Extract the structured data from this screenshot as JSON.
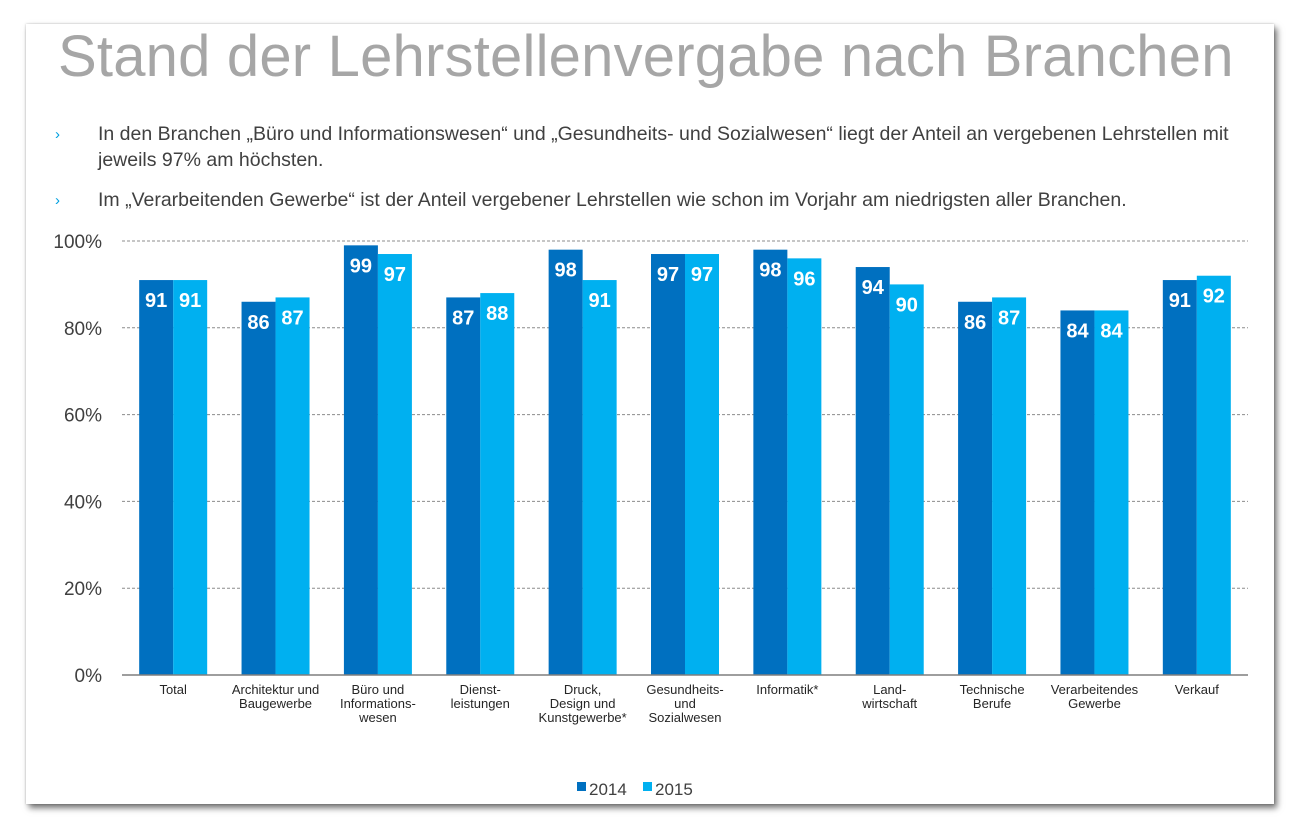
{
  "title": "Stand der Lehrstellenvergabe nach Branchen",
  "bullets": [
    {
      "marker": "›",
      "text": "In den Branchen „Büro und Informationswesen“ und „Gesundheits- und Sozialwesen“ liegt der Anteil an vergebenen Lehrstellen mit jeweils 97% am höchsten."
    },
    {
      "marker": "›",
      "text": "Im „Verarbeitenden Gewerbe“ ist der Anteil vergebener Lehrstellen wie schon im Vorjahr am niedrigsten aller Branchen."
    }
  ],
  "colors": {
    "series_2014": "#0070c0",
    "series_2015": "#00b0f0",
    "title": "#a6a6a6",
    "bullet_marker": "#00a0e0"
  },
  "chart_data": {
    "type": "bar",
    "categories": [
      [
        "Total"
      ],
      [
        "Architektur und",
        "Baugewerbe"
      ],
      [
        "Büro und",
        "Informations-",
        "wesen"
      ],
      [
        "Dienst-",
        "leistungen"
      ],
      [
        "Druck,",
        "Design und",
        "Kunstgewerbe*"
      ],
      [
        "Gesundheits-",
        "und",
        "Sozialwesen"
      ],
      [
        "Informatik*"
      ],
      [
        "Land-",
        "wirtschaft"
      ],
      [
        "Technische",
        "Berufe"
      ],
      [
        "Verarbeitendes",
        "Gewerbe"
      ],
      [
        "Verkauf"
      ]
    ],
    "series": [
      {
        "name": "2014",
        "color": "#0070c0",
        "values": [
          91,
          86,
          99,
          87,
          98,
          97,
          98,
          94,
          86,
          84,
          91
        ]
      },
      {
        "name": "2015",
        "color": "#00b0f0",
        "values": [
          91,
          87,
          97,
          88,
          91,
          97,
          96,
          90,
          87,
          84,
          92
        ]
      }
    ],
    "data_labels": [
      [
        "91",
        "86",
        "99",
        "87",
        "98",
        "97",
        "98",
        "94",
        "86",
        "84",
        "91"
      ],
      [
        "91",
        "87",
        "97",
        "88",
        "91",
        "97",
        "96",
        "90",
        "87",
        "84",
        "92"
      ]
    ],
    "ylim": [
      0,
      100
    ],
    "yticks": [
      0,
      20,
      40,
      60,
      80,
      100
    ],
    "ytick_labels": [
      "0%",
      "20%",
      "40%",
      "60%",
      "80%",
      "100%"
    ],
    "grid": "horizontal dashed",
    "legend_position": "bottom"
  }
}
